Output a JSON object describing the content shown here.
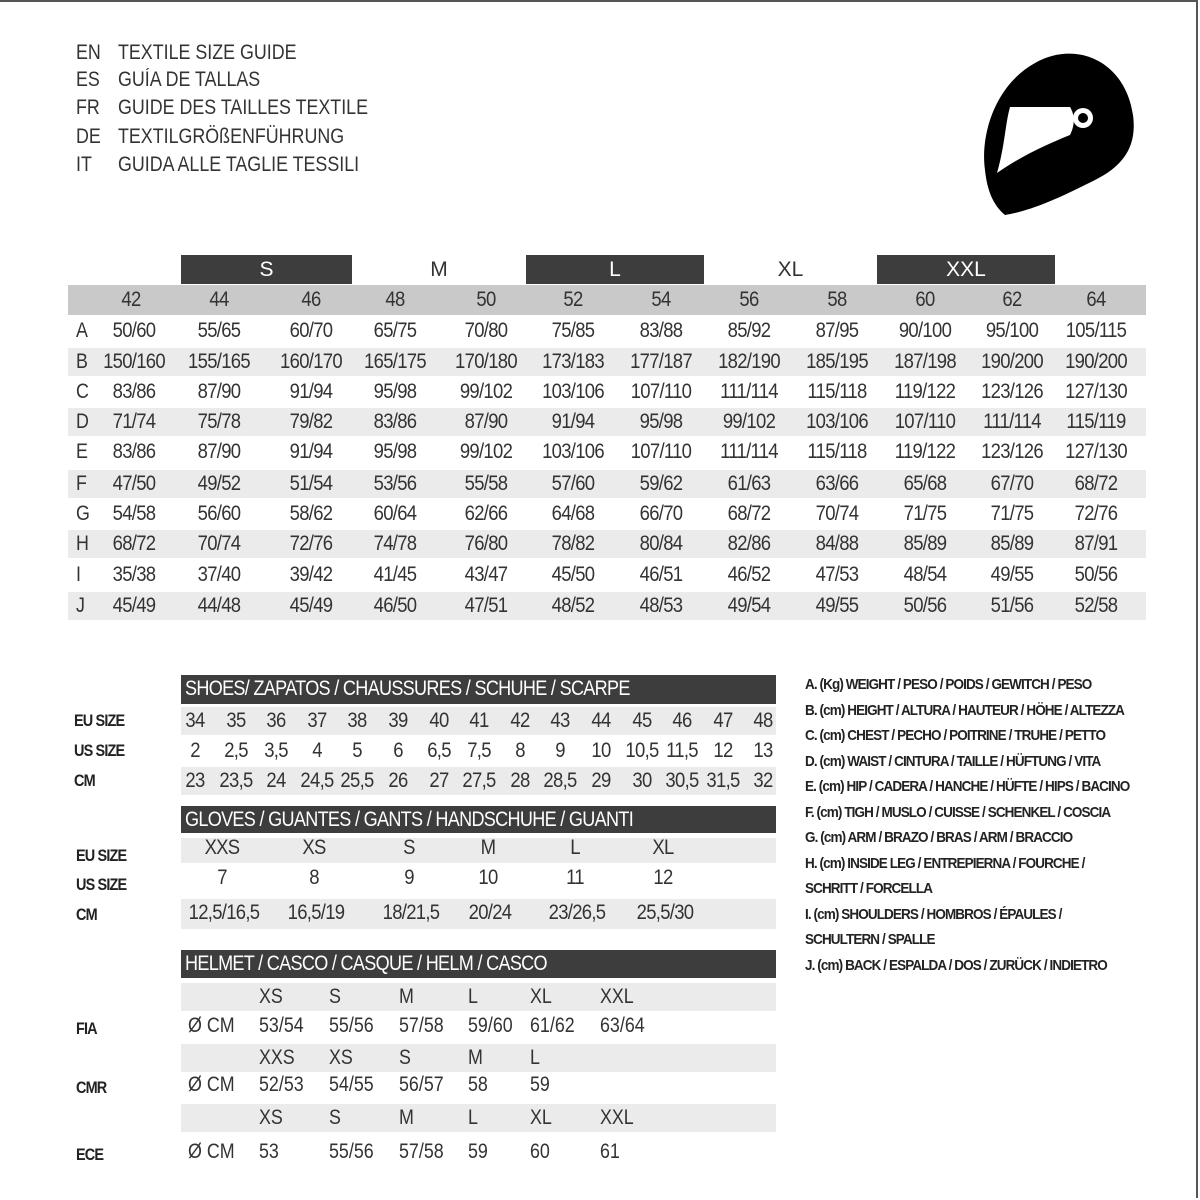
{
  "titles": [
    {
      "code": "EN",
      "text": "TEXTILE SIZE GUIDE"
    },
    {
      "code": "ES",
      "text": "GUÍA DE TALLAS"
    },
    {
      "code": "FR",
      "text": "GUIDE DES TAILLES TEXTILE"
    },
    {
      "code": "DE",
      "text": "TEXTILGRÖßENFÜHRUNG"
    },
    {
      "code": "IT",
      "text": "GUIDA ALLE TAGLIE TESSILI"
    }
  ],
  "icon": "helmet-icon",
  "colors": {
    "dark_band": "#3d3d3d",
    "header_gray": "#c9c9c9",
    "row_shade": "#ebebeb"
  },
  "textile": {
    "size_bands": [
      "S",
      "M",
      "L",
      "XL",
      "XXL"
    ],
    "sizes": [
      "42",
      "44",
      "46",
      "48",
      "50",
      "52",
      "54",
      "56",
      "58",
      "60",
      "62",
      "64"
    ],
    "rows": [
      {
        "label": "A",
        "values": [
          "50/60",
          "55/65",
          "60/70",
          "65/75",
          "70/80",
          "75/85",
          "83/88",
          "85/92",
          "87/95",
          "90/100",
          "95/100",
          "105/115"
        ]
      },
      {
        "label": "B",
        "values": [
          "150/160",
          "155/165",
          "160/170",
          "165/175",
          "170/180",
          "173/183",
          "177/187",
          "182/190",
          "185/195",
          "187/198",
          "190/200",
          "190/200"
        ]
      },
      {
        "label": "C",
        "values": [
          "83/86",
          "87/90",
          "91/94",
          "95/98",
          "99/102",
          "103/106",
          "107/110",
          "111/114",
          "115/118",
          "119/122",
          "123/126",
          "127/130"
        ]
      },
      {
        "label": "D",
        "values": [
          "71/74",
          "75/78",
          "79/82",
          "83/86",
          "87/90",
          "91/94",
          "95/98",
          "99/102",
          "103/106",
          "107/110",
          "111/114",
          "115/119"
        ]
      },
      {
        "label": "E",
        "values": [
          "83/86",
          "87/90",
          "91/94",
          "95/98",
          "99/102",
          "103/106",
          "107/110",
          "111/114",
          "115/118",
          "119/122",
          "123/126",
          "127/130"
        ]
      },
      {
        "label": "F",
        "values": [
          "47/50",
          "49/52",
          "51/54",
          "53/56",
          "55/58",
          "57/60",
          "59/62",
          "61/63",
          "63/66",
          "65/68",
          "67/70",
          "68/72"
        ]
      },
      {
        "label": "G",
        "values": [
          "54/58",
          "56/60",
          "58/62",
          "60/64",
          "62/66",
          "64/68",
          "66/70",
          "68/72",
          "70/74",
          "71/75",
          "71/75",
          "72/76"
        ]
      },
      {
        "label": "H",
        "values": [
          "68/72",
          "70/74",
          "72/76",
          "74/78",
          "76/80",
          "78/82",
          "80/84",
          "82/86",
          "84/88",
          "85/89",
          "85/89",
          "87/91"
        ]
      },
      {
        "label": "I",
        "values": [
          "35/38",
          "37/40",
          "39/42",
          "41/45",
          "43/47",
          "45/50",
          "46/51",
          "46/52",
          "47/53",
          "48/54",
          "49/55",
          "50/56"
        ]
      },
      {
        "label": "J",
        "values": [
          "45/49",
          "44/48",
          "45/49",
          "46/50",
          "47/51",
          "48/52",
          "48/53",
          "49/54",
          "49/55",
          "50/56",
          "51/56",
          "52/58"
        ]
      }
    ]
  },
  "shoes": {
    "title": "SHOES/ ZAPATOS / CHAUSSURES / SCHUHE / SCARPE",
    "rows": [
      {
        "label": "EU SIZE",
        "values": [
          "34",
          "35",
          "36",
          "37",
          "38",
          "39",
          "40",
          "41",
          "42",
          "43",
          "44",
          "45",
          "46",
          "47",
          "48"
        ]
      },
      {
        "label": "US SIZE",
        "values": [
          "2",
          "2,5",
          "3,5",
          "4",
          "5",
          "6",
          "6,5",
          "7,5",
          "8",
          "9",
          "10",
          "10,5",
          "11,5",
          "12",
          "13"
        ]
      },
      {
        "label": "CM",
        "values": [
          "23",
          "23,5",
          "24",
          "24,5",
          "25,5",
          "26",
          "27",
          "27,5",
          "28",
          "28,5",
          "29",
          "30",
          "30,5",
          "31,5",
          "32"
        ]
      }
    ]
  },
  "gloves": {
    "title": "GLOVES / GUANTES / GANTS / HANDSCHUHE / GUANTI",
    "rows": [
      {
        "label": "EU SIZE",
        "values": [
          "XXS",
          "XS",
          "S",
          "M",
          "L",
          "XL"
        ]
      },
      {
        "label": "US SIZE",
        "values": [
          "7",
          "8",
          "9",
          "10",
          "11",
          "12"
        ]
      },
      {
        "label": "CM",
        "values": [
          "12,5/16,5",
          "16,5/19",
          "18/21,5",
          "20/24",
          "23/26,5",
          "25,5/30"
        ]
      }
    ]
  },
  "helmet": {
    "title": "HELMET / CASCO / CASQUE / HELM / CASCO",
    "unit": "Ø CM",
    "groups": [
      {
        "label": "FIA",
        "sizes": [
          "XS",
          "S",
          "M",
          "L",
          "XL",
          "XXL"
        ],
        "values": [
          "53/54",
          "55/56",
          "57/58",
          "59/60",
          "61/62",
          "63/64"
        ]
      },
      {
        "label": "CMR",
        "sizes": [
          "XXS",
          "XS",
          "S",
          "M",
          "L"
        ],
        "values": [
          "52/53",
          "54/55",
          "56/57",
          "58",
          "59"
        ]
      },
      {
        "label": "ECE",
        "sizes": [
          "XS",
          "S",
          "M",
          "L",
          "XL",
          "XXL"
        ],
        "values": [
          "53",
          "55/56",
          "57/58",
          "59",
          "60",
          "61"
        ]
      }
    ]
  },
  "legend": [
    "A. (Kg) WEIGHT / PESO / POIDS / GEWITCH / PESO",
    "B. (cm) HEIGHT / ALTURA / HAUTEUR / HÖHE / ALTEZZA",
    "C. (cm) CHEST / PECHO / POITRINE / TRUHE / PETTO",
    "D. (cm) WAIST / CINTURA / TAILLE / HÜFTUNG / VITA",
    "E. (cm) HIP / CADERA / HANCHE / HÜFTE / HIPS /  BACINO",
    "F.  (cm) TIGH / MUSLO / CUISSE / SCHENKEL / COSCIA",
    "G. (cm) ARM  / BRAZO / BRAS / ARM / BRACCIO",
    "H. (cm) INSIDE LEG / ENTREPIERNA / FOURCHE /",
    "SCHRITT / FORCELLA",
    "I.  (cm) SHOULDERS / HOMBROS / ÉPAULES /",
    "SCHULTERN / SPALLE",
    "J. (cm) BACK / ESPALDA / DOS / ZURÜCK / INDIETRO"
  ]
}
